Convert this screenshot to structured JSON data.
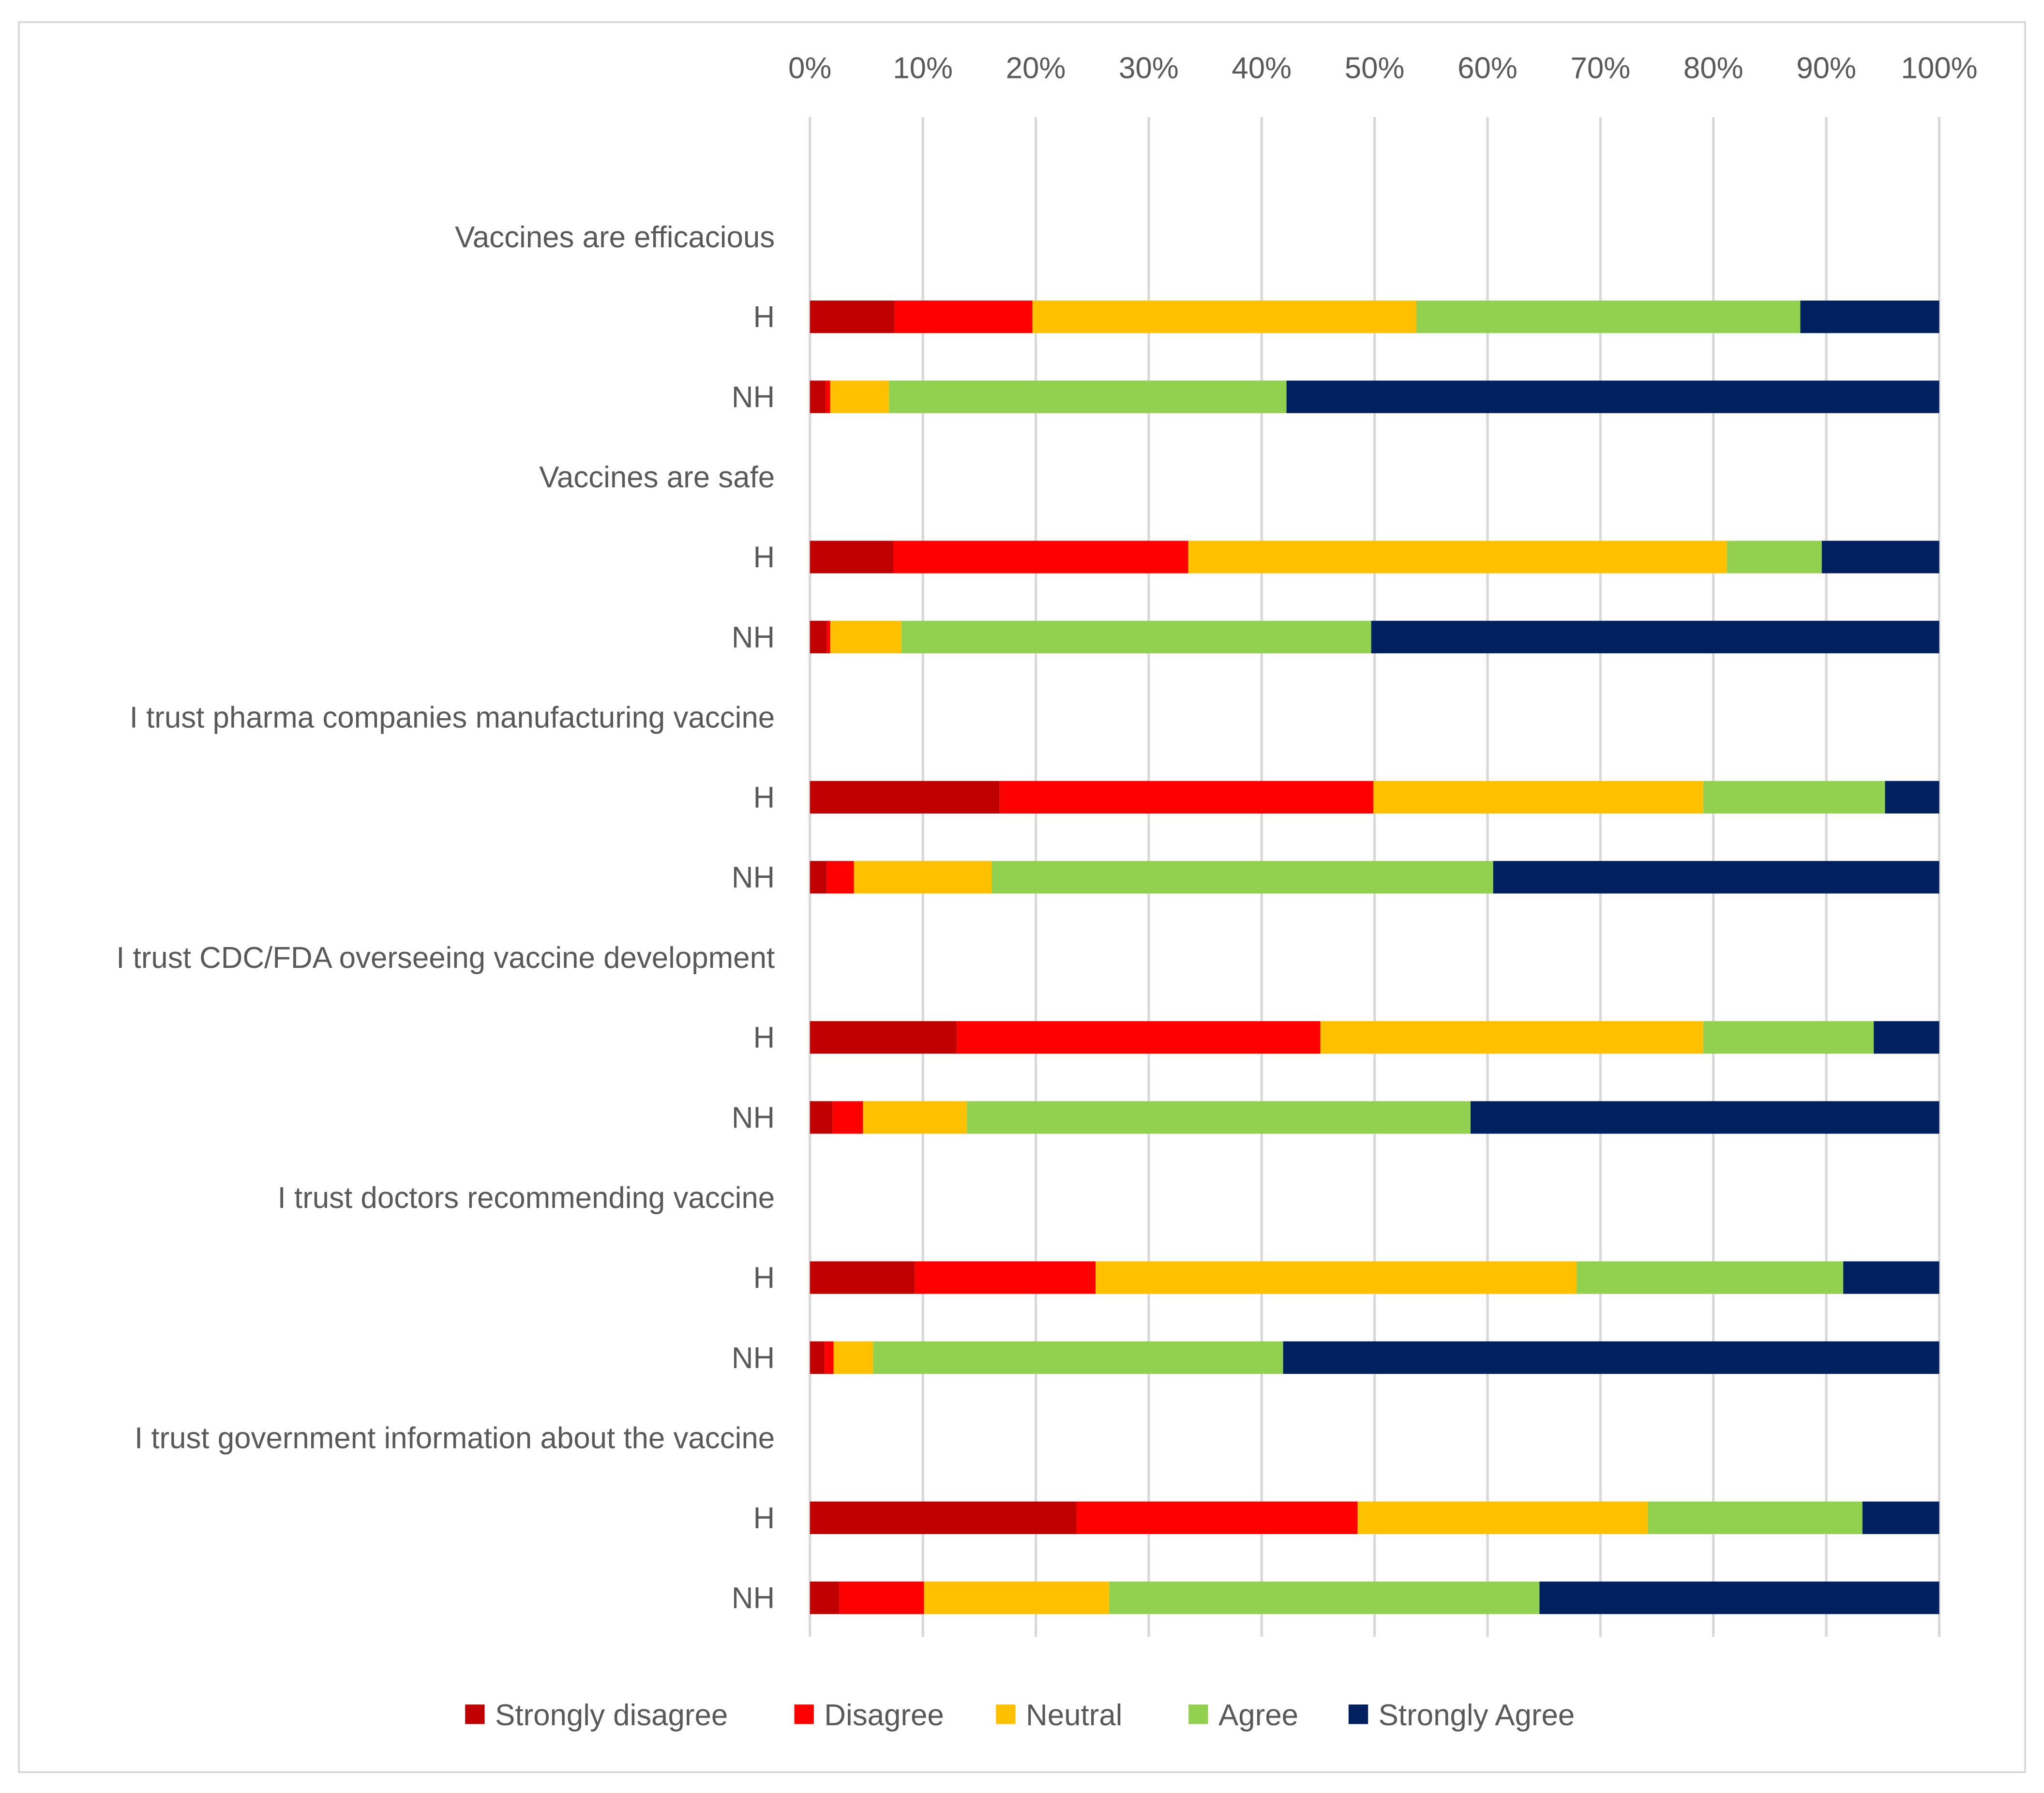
{
  "chart_data": {
    "type": "bar",
    "orientation": "horizontal",
    "stacked": "percent",
    "title": "",
    "xlabel": "",
    "ylabel": "",
    "xlim": [
      0,
      100
    ],
    "x_ticks": [
      "0%",
      "10%",
      "20%",
      "30%",
      "40%",
      "50%",
      "60%",
      "70%",
      "80%",
      "90%",
      "100%"
    ],
    "grid": true,
    "legend_position": "bottom",
    "series_names": [
      "Strongly disagree",
      "Disagree",
      "Neutral",
      "Agree",
      "Strongly Agree"
    ],
    "colors": [
      "#C00000",
      "#FF0000",
      "#FFC000",
      "#92D050",
      "#002060"
    ],
    "groups": [
      {
        "label": "Vaccines are efficacious",
        "rows": [
          {
            "label": "H",
            "values": [
              7.5,
              12.2,
              34.0,
              34.0,
              12.3
            ]
          },
          {
            "label": "NH",
            "values": [
              1.4,
              0.4,
              5.2,
              35.2,
              57.8
            ]
          }
        ]
      },
      {
        "label": "Vaccines are safe",
        "rows": [
          {
            "label": "H",
            "values": [
              7.4,
              26.1,
              47.7,
              8.4,
              10.4
            ]
          },
          {
            "label": "NH",
            "values": [
              1.5,
              0.3,
              6.3,
              41.6,
              50.3
            ]
          }
        ]
      },
      {
        "label": "I trust pharma companies manufacturing vaccine",
        "rows": [
          {
            "label": "H",
            "values": [
              16.8,
              33.1,
              29.2,
              16.1,
              4.8
            ]
          },
          {
            "label": "NH",
            "values": [
              1.5,
              2.4,
              12.2,
              44.4,
              39.5
            ]
          }
        ]
      },
      {
        "label": "I trust CDC/FDA overseeing vaccine development",
        "rows": [
          {
            "label": "H",
            "values": [
              13.0,
              32.2,
              33.9,
              15.1,
              5.8
            ]
          },
          {
            "label": "NH",
            "values": [
              2.0,
              2.7,
              9.2,
              44.6,
              41.5
            ]
          }
        ]
      },
      {
        "label": "I trust doctors recommending vaccine",
        "rows": [
          {
            "label": "H",
            "values": [
              9.3,
              16.0,
              42.6,
              23.6,
              8.5
            ]
          },
          {
            "label": "NH",
            "values": [
              1.3,
              0.8,
              3.5,
              36.3,
              58.1
            ]
          }
        ]
      },
      {
        "label": "I trust government information about the vaccine",
        "rows": [
          {
            "label": "H",
            "values": [
              23.6,
              24.9,
              25.7,
              19.0,
              6.8
            ]
          },
          {
            "label": "NH",
            "values": [
              2.6,
              7.5,
              16.4,
              38.1,
              35.4
            ]
          }
        ]
      }
    ]
  }
}
